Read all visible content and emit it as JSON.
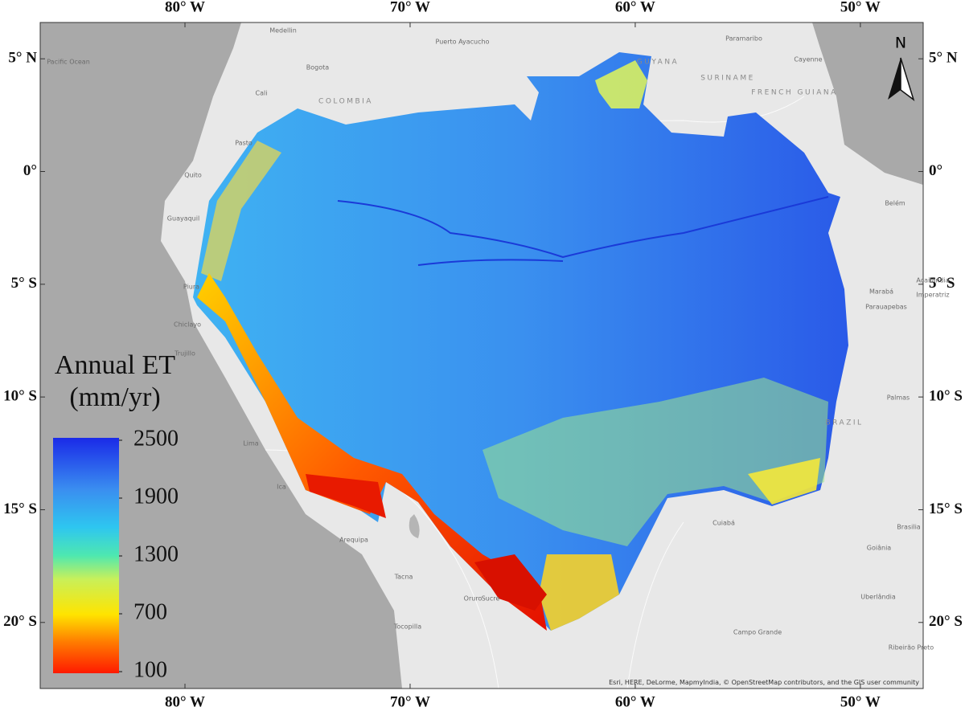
{
  "map": {
    "lon_range": [
      -86.43,
      -47.21
    ],
    "lat_range": [
      6.61,
      -22.93
    ],
    "lon_ticks": [
      {
        "value": -80,
        "label": "80° W"
      },
      {
        "value": -70,
        "label": "70° W"
      },
      {
        "value": -60,
        "label": "60° W"
      },
      {
        "value": -50,
        "label": "50° W"
      }
    ],
    "lat_ticks": [
      {
        "value": 5,
        "label": "5° N"
      },
      {
        "value": 0,
        "label": "0°"
      },
      {
        "value": -5,
        "label": "5° S"
      },
      {
        "value": -10,
        "label": "10° S"
      },
      {
        "value": -15,
        "label": "15° S"
      },
      {
        "value": -20,
        "label": "20° S"
      }
    ],
    "north_label": "N",
    "legend": {
      "title_lines": [
        "Annual ET",
        "(mm/yr)"
      ],
      "range": [
        100,
        2500
      ],
      "ticks": [
        100,
        700,
        1300,
        1900,
        2500
      ]
    },
    "places": [
      "Medellin",
      "Bogota",
      "Cali",
      "COLOMBIA",
      "Puerto Ayacucho",
      "Paramaribo",
      "SURINAME",
      "Cayenne",
      "FRENCH GUIANA",
      "GUYANA",
      "Pacific Ocean",
      "Quito",
      "Pasto",
      "Guayaquil",
      "Piura",
      "Chiclayo",
      "Trujillo",
      "Lima",
      "Ica",
      "Arequipa",
      "Tacna",
      "Oruro",
      "Sucre",
      "Tocopilla",
      "Belém",
      "Marabá",
      "Açailândia",
      "Imperatriz",
      "Parauapebas",
      "Palmas",
      "BRAZIL",
      "Cuiabá",
      "Brasilia",
      "Goiânia",
      "Uberlândia",
      "Campo Grande",
      "Ribeirão Preto"
    ],
    "attribution": "Esri, HERE, DeLorme, MapmyIndia, © OpenStreetMap contributors, and the GIS user community"
  }
}
